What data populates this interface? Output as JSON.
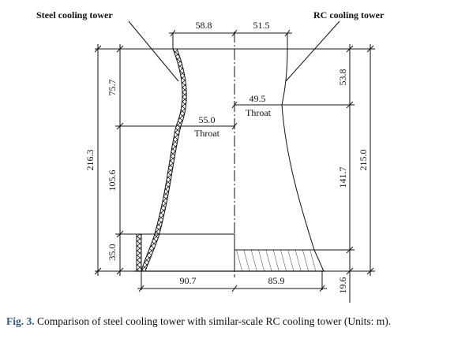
{
  "labels": {
    "steel_tower": "Steel cooling tower",
    "rc_tower": "RC cooling tower",
    "throat_left_value": "55.0",
    "throat_left_word": "Throat",
    "throat_right_value": "49.5",
    "throat_right_word": "Throat"
  },
  "dimensions": {
    "top_left": "58.8",
    "top_right": "51.5",
    "bottom_left": "90.7",
    "bottom_right": "85.9",
    "left_upper": "75.7",
    "left_middle": "105.6",
    "left_lower": "35.0",
    "left_total": "216.3",
    "right_upper": "53.8",
    "right_middle": "141.7",
    "right_lower": "19.6",
    "right_total": "215.0"
  },
  "caption": {
    "label": "Fig. 3.",
    "text": "Comparison of steel cooling tower with similar-scale RC cooling tower (Units: m)."
  },
  "colors": {
    "line": "#111111",
    "caption_label": "#2b5a8c"
  }
}
